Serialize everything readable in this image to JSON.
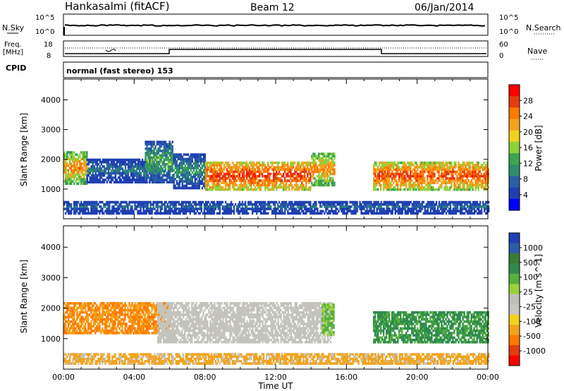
{
  "header": {
    "title": "Hankasalmi (fitACF)",
    "beam": "Beam 12",
    "date": "06/Jan/2014"
  },
  "side_labels": {
    "nsky": "N.Sky",
    "nsearch": "N.Search",
    "freq": "Freq.",
    "freq_unit": "[MHz]",
    "nave": "Nave",
    "cpid": "CPID",
    "cpid_value": "normal (fast stereo) 153"
  },
  "noise_axis": {
    "left_top": "10^5",
    "left_bottom": "10^0",
    "right_top": "10^5",
    "right_bottom": "10^0"
  },
  "freq_axis": {
    "left_top": "18",
    "left_bottom": "8",
    "right_top": "60",
    "right_bottom": "0"
  },
  "colorbars": {
    "power": {
      "label": "Power [dB]",
      "ticks": [
        "28",
        "24",
        "20",
        "16",
        "12",
        "8",
        "4"
      ],
      "colors": [
        "#ff0000",
        "#e53b10",
        "#ff7a00",
        "#f2a41e",
        "#f0d21e",
        "#8fd23c",
        "#3ca550",
        "#2f8c6e",
        "#2a5fa5",
        "#1f3fb2",
        "#0000ff"
      ]
    },
    "velocity": {
      "label": "Velocity [m s^-1]",
      "ticks": [
        "1000",
        "500",
        "100",
        "25",
        "-25",
        "-100",
        "-500",
        "-1000"
      ],
      "colors": [
        "#1f3fb2",
        "#2a5fa5",
        "#3a7a3a",
        "#2f8c4e",
        "#55b03c",
        "#9ad23c",
        "#c0c0b8",
        "#c8c8c0",
        "#f0d21e",
        "#f2a41e",
        "#ff7a00",
        "#e53b10",
        "#ff0000"
      ]
    }
  },
  "chart_data": [
    {
      "type": "heatmap",
      "panel": "power",
      "ylabel": "Slant Range [km]",
      "xlabel": "Time UT",
      "xticks": [
        "00:00",
        "04:00",
        "08:00",
        "12:00",
        "16:00",
        "20:00",
        "00:00"
      ],
      "yticks": [
        1000,
        2000,
        3000,
        4000
      ],
      "ylim": [
        0,
        4700
      ],
      "xlim_hours": [
        0,
        24
      ],
      "regions": [
        {
          "t0": 0.0,
          "t1": 1.3,
          "r0": 1150,
          "r1": 2250,
          "value": 22
        },
        {
          "t0": 1.3,
          "t1": 5.5,
          "r0": 1200,
          "r1": 2000,
          "value": 10
        },
        {
          "t0": 4.6,
          "t1": 6.2,
          "r0": 1200,
          "r1": 2600,
          "value": 14
        },
        {
          "t0": 6.2,
          "t1": 8.0,
          "r0": 1000,
          "r1": 2200,
          "value": 12
        },
        {
          "t0": 8.0,
          "t1": 14.0,
          "r0": 950,
          "r1": 1900,
          "value": 26
        },
        {
          "t0": 14.0,
          "t1": 15.3,
          "r0": 1100,
          "r1": 2200,
          "value": 22
        },
        {
          "t0": 17.5,
          "t1": 24.0,
          "r0": 950,
          "r1": 1900,
          "value": 25
        },
        {
          "t0": 0.0,
          "t1": 24.0,
          "r0": 150,
          "r1": 600,
          "value": 8
        }
      ]
    },
    {
      "type": "heatmap",
      "panel": "velocity",
      "ylabel": "Slant Range [km]",
      "xlabel": "Time UT",
      "xticks": [
        "00:00",
        "04:00",
        "08:00",
        "12:00",
        "16:00",
        "20:00",
        "00:00"
      ],
      "yticks": [
        1000,
        2000,
        3000,
        4000
      ],
      "ylim": [
        0,
        4700
      ],
      "xlim_hours": [
        0,
        24
      ],
      "regions": [
        {
          "t0": 0.0,
          "t1": 6.0,
          "r0": 1150,
          "r1": 2200,
          "value": -100
        },
        {
          "t0": 5.3,
          "t1": 15.2,
          "r0": 850,
          "r1": 2200,
          "value": 0
        },
        {
          "t0": 14.6,
          "t1": 15.3,
          "r0": 1100,
          "r1": 2100,
          "value": 100
        },
        {
          "t0": 17.5,
          "t1": 24.0,
          "r0": 850,
          "r1": 1900,
          "value": 250
        },
        {
          "t0": 0.0,
          "t1": 24.0,
          "r0": 150,
          "r1": 500,
          "value": -50
        }
      ]
    }
  ]
}
